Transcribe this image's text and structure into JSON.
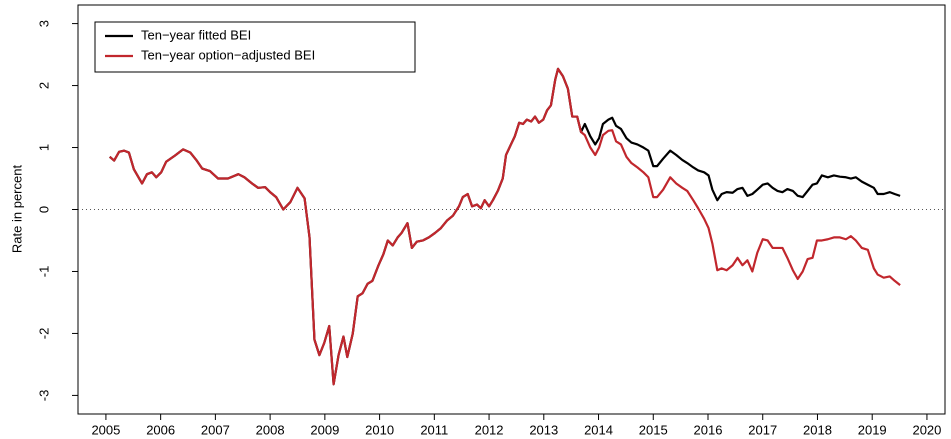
{
  "chart_data": {
    "type": "line",
    "y_label": "Rate in percent",
    "xlim": [
      2004.49,
      2020.33
    ],
    "ylim": [
      -3.3,
      3.3
    ],
    "xticks": [
      2005,
      2006,
      2007,
      2008,
      2009,
      2010,
      2011,
      2012,
      2013,
      2014,
      2015,
      2016,
      2017,
      2018,
      2019,
      2020
    ],
    "yticks": [
      -3,
      -2,
      -1,
      0,
      1,
      2,
      3
    ],
    "reference_line": 0,
    "legend": "top-left",
    "x": [
      2005.07,
      2005.15,
      2005.24,
      2005.33,
      2005.42,
      2005.51,
      2005.66,
      2005.75,
      2005.84,
      2005.92,
      2006.01,
      2006.1,
      2006.26,
      2006.41,
      2006.54,
      2006.65,
      2006.76,
      2006.9,
      2007.05,
      2007.23,
      2007.42,
      2007.53,
      2007.67,
      2007.78,
      2007.91,
      2008.0,
      2008.11,
      2008.24,
      2008.37,
      2008.5,
      2008.63,
      2008.72,
      2008.81,
      2008.9,
      2008.99,
      2009.08,
      2009.16,
      2009.25,
      2009.34,
      2009.41,
      2009.51,
      2009.6,
      2009.69,
      2009.78,
      2009.87,
      2009.98,
      2010.07,
      2010.15,
      2010.24,
      2010.33,
      2010.4,
      2010.51,
      2010.59,
      2010.68,
      2010.79,
      2010.9,
      2011.01,
      2011.12,
      2011.23,
      2011.34,
      2011.45,
      2011.52,
      2011.61,
      2011.69,
      2011.78,
      2011.85,
      2011.92,
      2012.0,
      2012.07,
      2012.16,
      2012.25,
      2012.31,
      2012.4,
      2012.47,
      2012.55,
      2012.62,
      2012.69,
      2012.77,
      2012.84,
      2012.91,
      2012.99,
      2013.06,
      2013.13,
      2013.21,
      2013.26,
      2013.35,
      2013.44,
      2013.52,
      2013.61,
      2013.68,
      2013.75,
      2013.85,
      2013.94,
      2014.01,
      2014.08,
      2014.18,
      2014.25,
      2014.32,
      2014.41,
      2014.51,
      2014.6,
      2014.71,
      2014.82,
      2014.91,
      2015.0,
      2015.07,
      2015.18,
      2015.31,
      2015.42,
      2015.53,
      2015.62,
      2015.73,
      2015.82,
      2015.93,
      2016.01,
      2016.08,
      2016.17,
      2016.25,
      2016.34,
      2016.45,
      2016.54,
      2016.63,
      2016.72,
      2016.81,
      2016.9,
      2017.0,
      2017.09,
      2017.18,
      2017.27,
      2017.36,
      2017.45,
      2017.55,
      2017.64,
      2017.73,
      2017.82,
      2017.91,
      2017.99,
      2018.08,
      2018.19,
      2018.3,
      2018.41,
      2018.52,
      2018.61,
      2018.7,
      2018.81,
      2018.92,
      2019.03,
      2019.1,
      2019.21,
      2019.32,
      2019.41,
      2019.51
    ],
    "series": [
      {
        "name": "Ten−year fitted BEI",
        "color": "#000000",
        "values": [
          0.85,
          0.79,
          0.93,
          0.95,
          0.92,
          0.65,
          0.42,
          0.57,
          0.6,
          0.52,
          0.6,
          0.77,
          0.87,
          0.97,
          0.92,
          0.8,
          0.66,
          0.62,
          0.5,
          0.5,
          0.57,
          0.52,
          0.42,
          0.35,
          0.36,
          0.28,
          0.2,
          0.0,
          0.12,
          0.35,
          0.18,
          -0.45,
          -2.1,
          -2.35,
          -2.15,
          -1.88,
          -2.82,
          -2.35,
          -2.05,
          -2.38,
          -2.0,
          -1.4,
          -1.35,
          -1.2,
          -1.15,
          -0.9,
          -0.72,
          -0.5,
          -0.58,
          -0.45,
          -0.38,
          -0.22,
          -0.62,
          -0.52,
          -0.5,
          -0.45,
          -0.38,
          -0.3,
          -0.18,
          -0.1,
          0.05,
          0.2,
          0.25,
          0.05,
          0.08,
          0.02,
          0.15,
          0.05,
          0.15,
          0.3,
          0.5,
          0.88,
          1.05,
          1.18,
          1.4,
          1.38,
          1.45,
          1.42,
          1.5,
          1.4,
          1.45,
          1.6,
          1.68,
          2.1,
          2.27,
          2.15,
          1.95,
          1.5,
          1.5,
          1.25,
          1.38,
          1.18,
          1.05,
          1.15,
          1.38,
          1.45,
          1.48,
          1.35,
          1.3,
          1.15,
          1.08,
          1.05,
          1.0,
          0.95,
          0.7,
          0.7,
          0.82,
          0.95,
          0.88,
          0.8,
          0.75,
          0.68,
          0.63,
          0.6,
          0.55,
          0.32,
          0.15,
          0.25,
          0.28,
          0.27,
          0.33,
          0.35,
          0.22,
          0.25,
          0.32,
          0.4,
          0.42,
          0.35,
          0.3,
          0.28,
          0.33,
          0.3,
          0.22,
          0.2,
          0.3,
          0.4,
          0.42,
          0.55,
          0.52,
          0.55,
          0.53,
          0.52,
          0.5,
          0.52,
          0.45,
          0.4,
          0.35,
          0.25,
          0.25,
          0.28,
          0.25,
          0.22
        ]
      },
      {
        "name": "Ten−year option−adjusted BEI",
        "color": "#c1272d",
        "values": [
          0.85,
          0.79,
          0.93,
          0.95,
          0.92,
          0.65,
          0.42,
          0.57,
          0.6,
          0.52,
          0.6,
          0.77,
          0.87,
          0.97,
          0.92,
          0.8,
          0.66,
          0.62,
          0.5,
          0.5,
          0.57,
          0.52,
          0.42,
          0.35,
          0.36,
          0.28,
          0.2,
          0.0,
          0.12,
          0.35,
          0.18,
          -0.45,
          -2.1,
          -2.35,
          -2.15,
          -1.88,
          -2.82,
          -2.35,
          -2.05,
          -2.38,
          -2.0,
          -1.4,
          -1.35,
          -1.2,
          -1.15,
          -0.9,
          -0.72,
          -0.5,
          -0.58,
          -0.45,
          -0.38,
          -0.22,
          -0.62,
          -0.52,
          -0.5,
          -0.45,
          -0.38,
          -0.3,
          -0.18,
          -0.1,
          0.05,
          0.2,
          0.25,
          0.05,
          0.08,
          0.02,
          0.15,
          0.05,
          0.15,
          0.3,
          0.5,
          0.88,
          1.05,
          1.18,
          1.4,
          1.38,
          1.45,
          1.42,
          1.5,
          1.4,
          1.45,
          1.6,
          1.68,
          2.1,
          2.27,
          2.15,
          1.95,
          1.5,
          1.5,
          1.25,
          1.2,
          1.0,
          0.88,
          1.0,
          1.2,
          1.27,
          1.28,
          1.1,
          1.05,
          0.85,
          0.75,
          0.68,
          0.6,
          0.52,
          0.2,
          0.2,
          0.32,
          0.52,
          0.42,
          0.35,
          0.3,
          0.15,
          0.02,
          -0.15,
          -0.3,
          -0.55,
          -0.98,
          -0.95,
          -0.98,
          -0.9,
          -0.78,
          -0.9,
          -0.82,
          -1.0,
          -0.7,
          -0.48,
          -0.5,
          -0.62,
          -0.62,
          -0.62,
          -0.78,
          -0.98,
          -1.12,
          -1.0,
          -0.8,
          -0.78,
          -0.5,
          -0.5,
          -0.48,
          -0.45,
          -0.45,
          -0.48,
          -0.43,
          -0.5,
          -0.62,
          -0.65,
          -0.95,
          -1.05,
          -1.1,
          -1.08,
          -1.15,
          -1.22
        ]
      }
    ]
  }
}
